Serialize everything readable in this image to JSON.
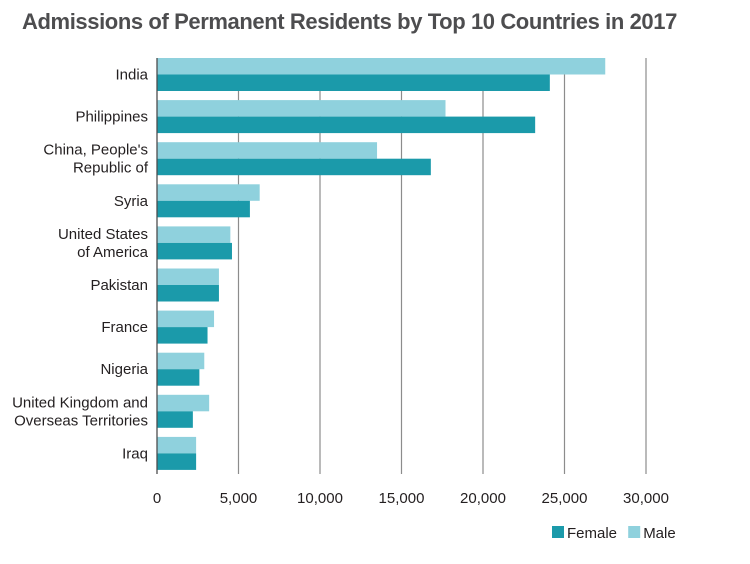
{
  "chart_data": {
    "type": "bar",
    "orientation": "horizontal",
    "title": "Admissions of Permanent Residents by Top 10 Countries in 2017",
    "categories": [
      [
        "India"
      ],
      [
        "Philippines"
      ],
      [
        "China, People's",
        "Republic of"
      ],
      [
        "Syria"
      ],
      [
        "United States",
        "of America"
      ],
      [
        "Pakistan"
      ],
      [
        "France"
      ],
      [
        "Nigeria"
      ],
      [
        "United Kingdom and",
        "Overseas Territories"
      ],
      [
        "Iraq"
      ]
    ],
    "series": [
      {
        "name": "Male",
        "color": "#8fd1dd",
        "values": [
          27500,
          17700,
          13500,
          6300,
          4500,
          3800,
          3500,
          2900,
          3200,
          2400
        ]
      },
      {
        "name": "Female",
        "color": "#1b9aaa",
        "values": [
          24100,
          23200,
          16800,
          5700,
          4600,
          3800,
          3100,
          2600,
          2200,
          2400
        ]
      }
    ],
    "xlim": [
      0,
      30000
    ],
    "xticks": [
      0,
      5000,
      10000,
      15000,
      20000,
      25000,
      30000
    ],
    "xtick_labels": [
      "0",
      "5,000",
      "10,000",
      "15,000",
      "20,000",
      "25,000",
      "30,000"
    ],
    "grid": true,
    "legend": {
      "position": "bottom-right",
      "entries": [
        {
          "name": "Female",
          "color": "#1b9aaa"
        },
        {
          "name": "Male",
          "color": "#8fd1dd"
        }
      ]
    }
  }
}
